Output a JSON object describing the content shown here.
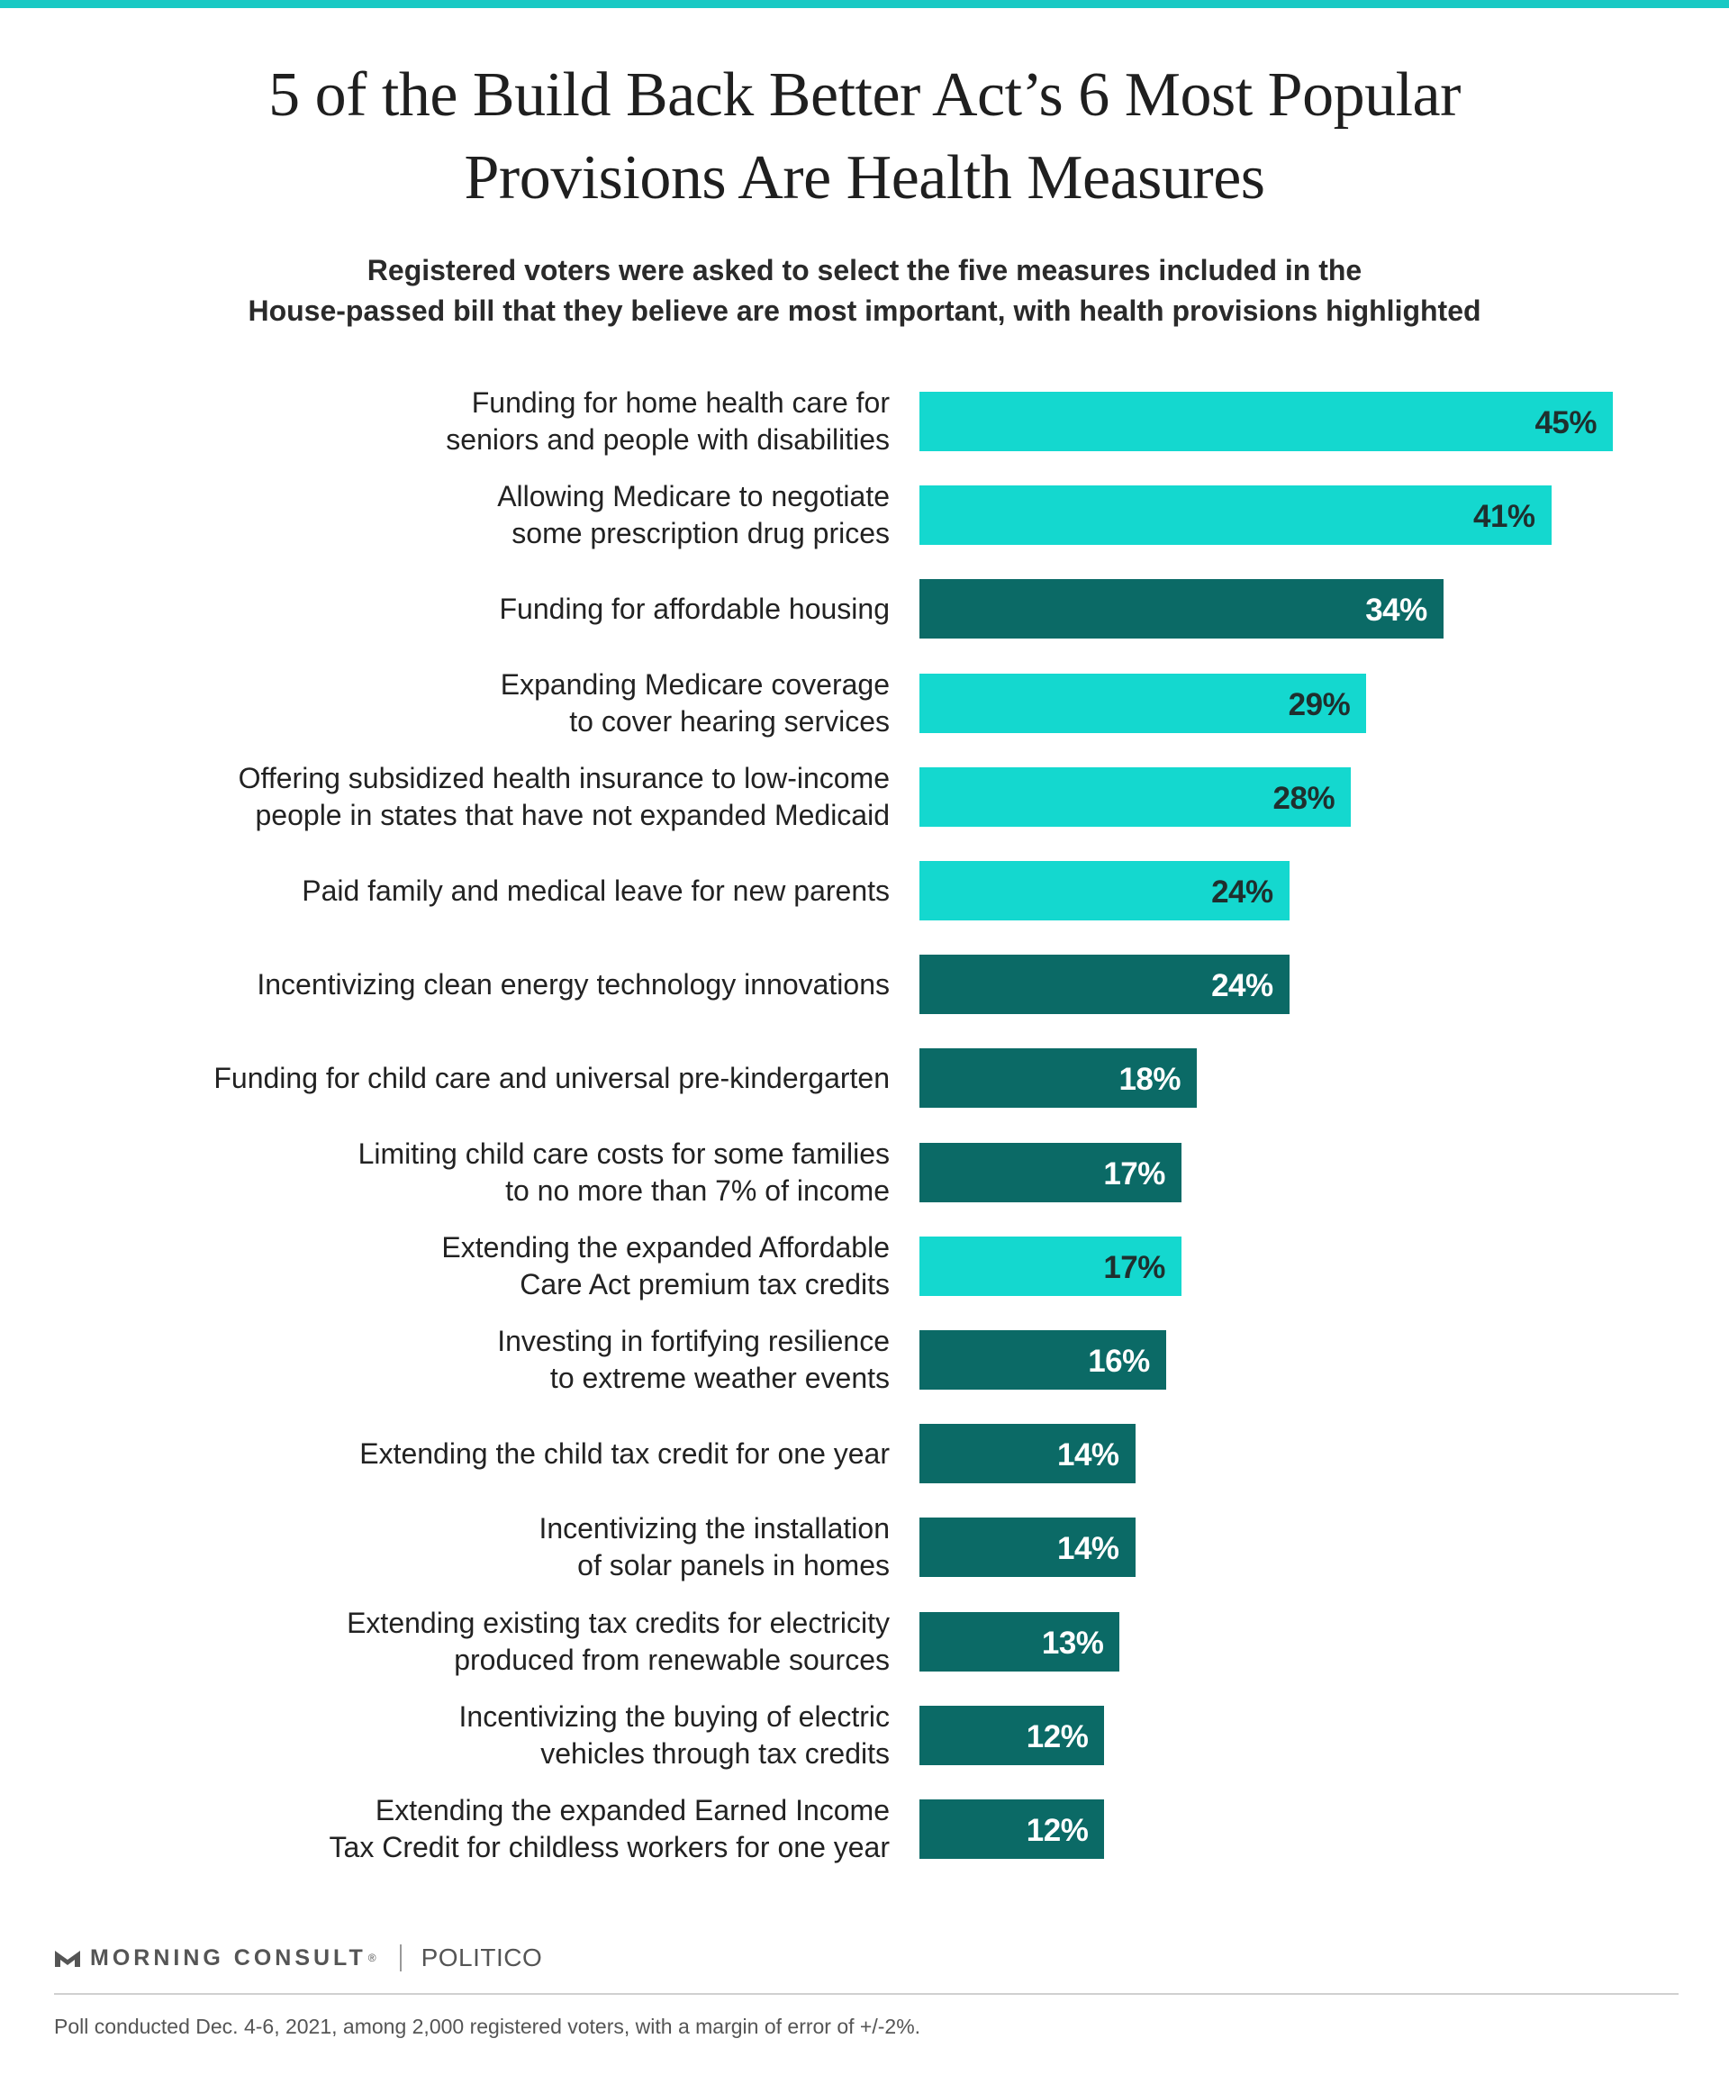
{
  "colors": {
    "top_rule": "#19c9c4",
    "health": "#14d8cf",
    "other": "#0b6a66",
    "health_label_text": "#1f2f2e",
    "other_label_text": "#ffffff"
  },
  "header": {
    "title_lines": [
      "5 of the Build Back Better Act’s 6 Most Popular",
      "Provisions Are Health Measures"
    ],
    "subtitle_lines": [
      "Registered voters were asked to select the five measures included in the",
      "House-passed bill that they believe are most important, with health provisions highlighted"
    ]
  },
  "chart_data": {
    "type": "bar",
    "orientation": "horizontal",
    "value_max": 45,
    "categories": [
      [
        "Funding for home health care for",
        "seniors and people with disabilities"
      ],
      [
        "Allowing Medicare to negotiate",
        "some prescription drug prices"
      ],
      [
        "Funding for affordable housing"
      ],
      [
        "Expanding Medicare coverage",
        "to cover hearing services"
      ],
      [
        "Offering subsidized health insurance to low-income",
        "people in states that have not expanded Medicaid"
      ],
      [
        "Paid family and medical leave for new parents"
      ],
      [
        "Incentivizing clean energy technology innovations"
      ],
      [
        "Funding for child care and universal pre-kindergarten"
      ],
      [
        "Limiting child care costs for some families",
        "to no more than 7% of income"
      ],
      [
        "Extending the expanded Affordable",
        "Care Act premium tax credits"
      ],
      [
        "Investing in fortifying resilience",
        "to extreme weather events"
      ],
      [
        "Extending the child tax credit for one year"
      ],
      [
        "Incentivizing the installation",
        "of solar panels in homes"
      ],
      [
        "Extending existing tax credits for electricity",
        "produced from renewable sources"
      ],
      [
        "Incentivizing the buying of electric",
        "vehicles through tax credits"
      ],
      [
        "Extending the expanded Earned Income",
        "Tax Credit for childless workers for one year"
      ]
    ],
    "values": [
      45,
      41,
      34,
      29,
      28,
      24,
      24,
      18,
      17,
      17,
      16,
      14,
      14,
      13,
      12,
      12
    ],
    "value_labels": [
      "45%",
      "41%",
      "34%",
      "29%",
      "28%",
      "24%",
      "24%",
      "18%",
      "17%",
      "17%",
      "16%",
      "14%",
      "14%",
      "13%",
      "12%",
      "12%"
    ],
    "health": [
      true,
      true,
      false,
      true,
      true,
      true,
      false,
      false,
      false,
      true,
      false,
      false,
      false,
      false,
      false,
      false
    ]
  },
  "footer": {
    "brand_morning_consult": "MORNING CONSULT",
    "brand_mark": "®",
    "brand_politico": "POLITICO",
    "note": "Poll conducted Dec. 4-6, 2021, among 2,000 registered voters, with a margin of error of +/-2%."
  }
}
